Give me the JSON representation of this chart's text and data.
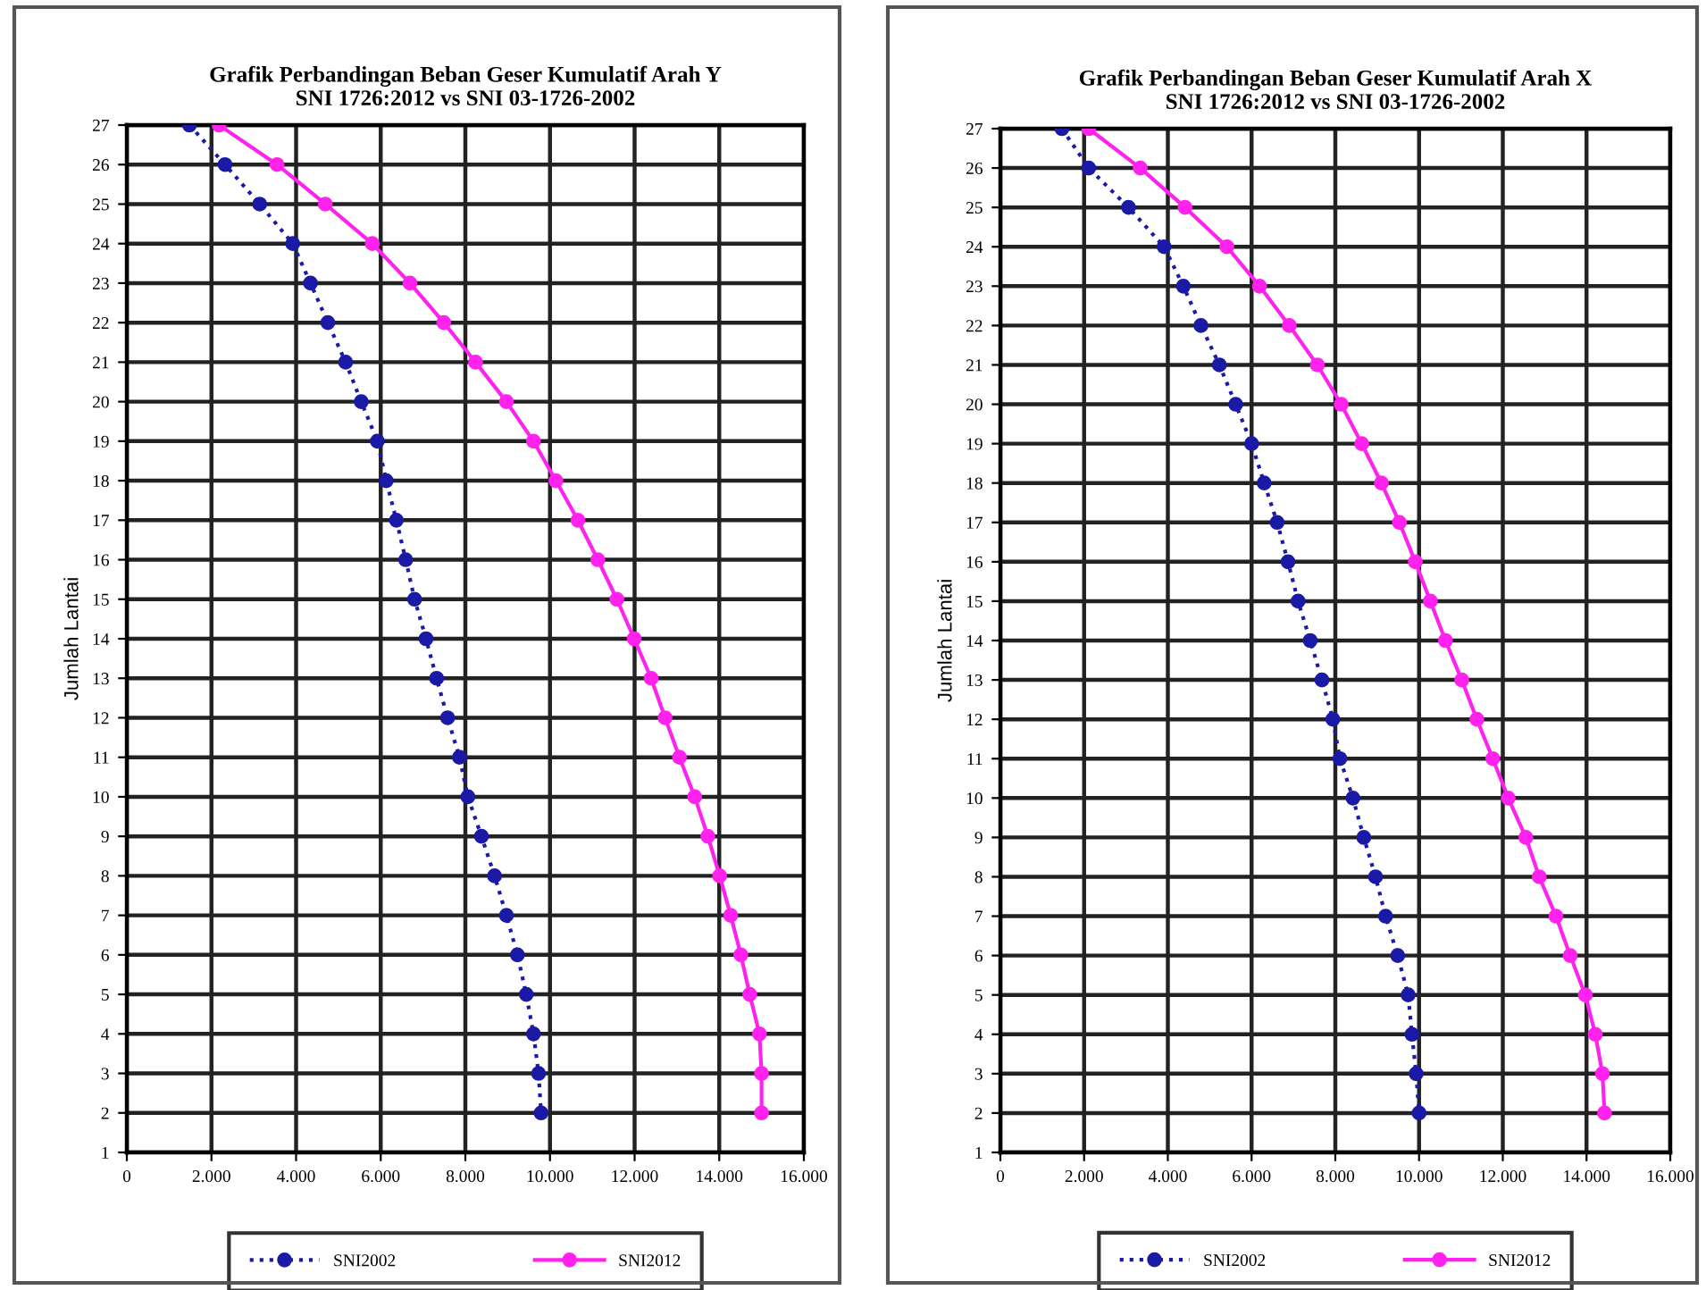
{
  "chart_data": [
    {
      "type": "line",
      "title": "Grafik Perbandingan Beban Geser Kumulatif Arah Y\nSNI 1726:2012 vs SNI 03-1726-2002",
      "ylabel": "Jumlah Lantai",
      "xlim": [
        0,
        16000
      ],
      "xticks": [
        0,
        {
          "value": 2000,
          "label": "2.000"
        },
        {
          "value": 4000,
          "label": "4.000"
        },
        {
          "value": 6000,
          "label": "6.000"
        },
        {
          "value": 8000,
          "label": "8.000"
        },
        {
          "value": 10000,
          "label": "10.000"
        },
        {
          "value": 12000,
          "label": "12.000"
        },
        {
          "value": 14000,
          "label": "14.000"
        },
        {
          "value": 16000,
          "label": "16.000"
        }
      ],
      "ylim": [
        1,
        27
      ],
      "yticks": [
        1,
        2,
        3,
        4,
        5,
        6,
        7,
        8,
        9,
        10,
        11,
        12,
        13,
        14,
        15,
        16,
        17,
        18,
        19,
        20,
        21,
        22,
        23,
        24,
        25,
        26,
        27
      ],
      "grid": true,
      "legend": "bottom",
      "series": [
        {
          "name": "SNI2002",
          "color": "#1a1aa6",
          "marker": "circle",
          "line_style": "dotted",
          "x": [
            1480,
            2320,
            3140,
            3920,
            4340,
            4750,
            5170,
            5540,
            5920,
            6130,
            6370,
            6590,
            6800,
            7070,
            7320,
            7580,
            7860,
            8060,
            8380,
            8690,
            8970,
            9230,
            9440,
            9610,
            9730,
            9790
          ],
          "values": [
            27,
            26,
            25,
            24,
            23,
            22,
            21,
            20,
            19,
            18,
            17,
            16,
            15,
            14,
            13,
            12,
            11,
            10,
            9,
            8,
            7,
            6,
            5,
            4,
            3,
            2
          ]
        },
        {
          "name": "SNI2012",
          "color": "#ff22ee",
          "marker": "circle",
          "line_style": "solid",
          "x": [
            2180,
            3550,
            4690,
            5800,
            6690,
            7490,
            8240,
            8970,
            9610,
            10140,
            10660,
            11130,
            11580,
            11990,
            12390,
            12720,
            13060,
            13420,
            13730,
            14010,
            14270,
            14510,
            14720,
            14950,
            15000,
            15000
          ],
          "values": [
            27,
            26,
            25,
            24,
            23,
            22,
            21,
            20,
            19,
            18,
            17,
            16,
            15,
            14,
            13,
            12,
            11,
            10,
            9,
            8,
            7,
            6,
            5,
            4,
            3,
            2
          ]
        }
      ]
    },
    {
      "type": "line",
      "title": "Grafik Perbandingan Beban Geser Kumulatif Arah X\nSNI 1726:2012 vs SNI 03-1726-2002",
      "ylabel": "Jumlah Lantai",
      "xlim": [
        0,
        16000
      ],
      "xticks": [
        0,
        {
          "value": 2000,
          "label": "2.000"
        },
        {
          "value": 4000,
          "label": "4.000"
        },
        {
          "value": 6000,
          "label": "6.000"
        },
        {
          "value": 8000,
          "label": "8.000"
        },
        {
          "value": 10000,
          "label": "10.000"
        },
        {
          "value": 12000,
          "label": "12.000"
        },
        {
          "value": 14000,
          "label": "14.000"
        },
        {
          "value": 16000,
          "label": "16.000"
        }
      ],
      "ylim": [
        1,
        27
      ],
      "yticks": [
        1,
        2,
        3,
        4,
        5,
        6,
        7,
        8,
        9,
        10,
        11,
        12,
        13,
        14,
        15,
        16,
        17,
        18,
        19,
        20,
        21,
        22,
        23,
        24,
        25,
        26,
        27
      ],
      "grid": true,
      "legend": "bottom",
      "series": [
        {
          "name": "SNI2002",
          "color": "#1a1aa6",
          "marker": "circle",
          "line_style": "dotted",
          "x": [
            1470,
            2110,
            3060,
            3910,
            4370,
            4790,
            5230,
            5620,
            6000,
            6300,
            6610,
            6870,
            7110,
            7400,
            7680,
            7940,
            8110,
            8420,
            8680,
            8960,
            9200,
            9490,
            9740,
            9830,
            9930,
            10000
          ],
          "values": [
            27,
            26,
            25,
            24,
            23,
            22,
            21,
            20,
            19,
            18,
            17,
            16,
            15,
            14,
            13,
            12,
            11,
            10,
            9,
            8,
            7,
            6,
            5,
            4,
            3,
            2
          ]
        },
        {
          "name": "SNI2012",
          "color": "#ff22ee",
          "marker": "circle",
          "line_style": "solid",
          "x": [
            2110,
            3340,
            4410,
            5410,
            6190,
            6900,
            7570,
            8140,
            8630,
            9100,
            9530,
            9910,
            10270,
            10630,
            11020,
            11380,
            11760,
            12130,
            12550,
            12870,
            13270,
            13610,
            13970,
            14210,
            14380,
            14430
          ],
          "values": [
            27,
            26,
            25,
            24,
            23,
            22,
            21,
            20,
            19,
            18,
            17,
            16,
            15,
            14,
            13,
            12,
            11,
            10,
            9,
            8,
            7,
            6,
            5,
            4,
            3,
            2
          ]
        }
      ]
    }
  ]
}
